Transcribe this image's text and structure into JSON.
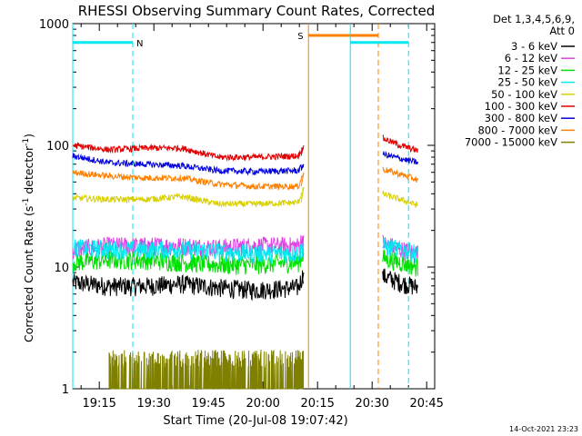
{
  "chart_data": {
    "type": "line",
    "title": "RHESSI Observing Summary Count Rates, Corrected",
    "xlabel": "Start Time (20-Jul-08 19:07:42)",
    "ylabel": "Corrected Count Rate (s⁻¹ detector⁻¹)",
    "y_scale": "log",
    "ylim": [
      1,
      1000
    ],
    "xlim_minutes": [
      0,
      99.5
    ],
    "x_ticks": [
      {
        "label": "19:15",
        "min": 7.3
      },
      {
        "label": "19:30",
        "min": 22.3
      },
      {
        "label": "19:45",
        "min": 37.3
      },
      {
        "label": "20:00",
        "min": 52.3
      },
      {
        "label": "20:15",
        "min": 67.3
      },
      {
        "label": "20:30",
        "min": 82.3
      },
      {
        "label": "20:45",
        "min": 97.3
      }
    ],
    "y_ticks": [
      {
        "label": "1",
        "value": 1
      },
      {
        "label": "10",
        "value": 10
      },
      {
        "label": "100",
        "value": 100
      },
      {
        "label": "1000",
        "value": 1000
      }
    ],
    "legend_header": [
      "Det 1,3,4,5,6,9,",
      "Att 0"
    ],
    "legend_placement": "right",
    "series": [
      {
        "name": "3 - 6 keV",
        "color": "#000000",
        "points": [
          [
            0,
            7.5
          ],
          [
            10,
            7.0
          ],
          [
            20,
            7.0
          ],
          [
            30,
            7.3
          ],
          [
            40,
            6.8
          ],
          [
            50,
            6.5
          ],
          [
            62,
            6.8
          ],
          [
            63.5,
            9
          ],
          [
            85,
            8.5
          ],
          [
            90,
            7.5
          ],
          [
            95,
            6.8
          ]
        ]
      },
      {
        "name": "6 - 12 keV",
        "color": "#e040e0",
        "points": [
          [
            0,
            14
          ],
          [
            10,
            15
          ],
          [
            20,
            15
          ],
          [
            30,
            15
          ],
          [
            40,
            14.5
          ],
          [
            50,
            15
          ],
          [
            62,
            15
          ],
          [
            63.5,
            18
          ],
          [
            85,
            16
          ],
          [
            90,
            14
          ],
          [
            95,
            13
          ]
        ]
      },
      {
        "name": "12 - 25 keV",
        "color": "#00e000",
        "points": [
          [
            0,
            11
          ],
          [
            10,
            11.5
          ],
          [
            20,
            11.5
          ],
          [
            30,
            11
          ],
          [
            40,
            10.5
          ],
          [
            50,
            10.5
          ],
          [
            62,
            11
          ],
          [
            63.5,
            13
          ],
          [
            85,
            12
          ],
          [
            90,
            11
          ],
          [
            95,
            10
          ]
        ]
      },
      {
        "name": "25 - 50 keV",
        "color": "#00e8f0",
        "points": [
          [
            0,
            14.5
          ],
          [
            10,
            14
          ],
          [
            20,
            14
          ],
          [
            30,
            14
          ],
          [
            40,
            13.5
          ],
          [
            50,
            13
          ],
          [
            62,
            13
          ],
          [
            63.5,
            15
          ],
          [
            85,
            15
          ],
          [
            90,
            14
          ],
          [
            95,
            13
          ]
        ]
      },
      {
        "name": "50 - 100 keV",
        "color": "#d8d000",
        "points": [
          [
            0,
            37
          ],
          [
            10,
            36
          ],
          [
            20,
            36
          ],
          [
            30,
            38
          ],
          [
            40,
            33
          ],
          [
            50,
            33
          ],
          [
            62,
            34
          ],
          [
            63.5,
            45
          ],
          [
            85,
            40
          ],
          [
            90,
            36
          ],
          [
            95,
            32
          ]
        ]
      },
      {
        "name": "100 - 300 keV",
        "color": "#e00000",
        "points": [
          [
            0,
            100
          ],
          [
            10,
            92
          ],
          [
            20,
            95
          ],
          [
            30,
            95
          ],
          [
            40,
            80
          ],
          [
            50,
            80
          ],
          [
            62,
            82
          ],
          [
            63.5,
            100
          ],
          [
            85,
            115
          ],
          [
            90,
            100
          ],
          [
            95,
            90
          ]
        ]
      },
      {
        "name": "300 - 800 keV",
        "color": "#0000e0",
        "points": [
          [
            0,
            82
          ],
          [
            10,
            72
          ],
          [
            20,
            70
          ],
          [
            30,
            68
          ],
          [
            40,
            62
          ],
          [
            50,
            61
          ],
          [
            62,
            62
          ],
          [
            63.5,
            70
          ],
          [
            85,
            85
          ],
          [
            90,
            78
          ],
          [
            95,
            72
          ]
        ]
      },
      {
        "name": "800 - 7000 keV",
        "color": "#ff8000",
        "points": [
          [
            0,
            60
          ],
          [
            10,
            56
          ],
          [
            20,
            54
          ],
          [
            30,
            54
          ],
          [
            40,
            48
          ],
          [
            50,
            46
          ],
          [
            62,
            46
          ],
          [
            63.5,
            60
          ],
          [
            85,
            64
          ],
          [
            90,
            58
          ],
          [
            95,
            52
          ]
        ]
      },
      {
        "name": "7000 - 15000 keV",
        "color": "#808000",
        "points": [
          [
            10,
            1.2
          ],
          [
            20,
            1.9
          ],
          [
            30,
            1.5
          ],
          [
            40,
            1.3
          ],
          [
            50,
            1.2
          ],
          [
            62,
            1.3
          ],
          [
            63.5,
            3
          ]
        ]
      }
    ],
    "markers": [
      {
        "label": "N",
        "color": "#00e8f0",
        "level": 700,
        "start_min": 0,
        "end_min": 16.5
      },
      {
        "label": "S",
        "color": "#ff8000",
        "level": 800,
        "start_min": 64.8,
        "end_min": 84.0
      },
      {
        "label": "",
        "color": "#00e8f0",
        "level": 700,
        "start_min": 76.3,
        "end_min": 92.3
      }
    ],
    "timestamp": "14-Oct-2021 23:23"
  }
}
